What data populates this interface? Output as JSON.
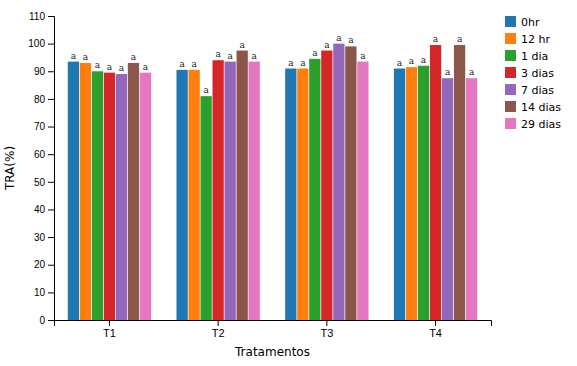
{
  "chart_data": {
    "type": "bar",
    "x_label": "Tratamentos",
    "y_label": "TRA(%)",
    "categories": [
      "T1",
      "T2",
      "T3",
      "T4"
    ],
    "series": [
      {
        "name": "0hr",
        "values": [
          93.5,
          90.5,
          91.0,
          91.0
        ],
        "annotations": [
          "a",
          "a",
          "a",
          "a"
        ]
      },
      {
        "name": "12 hr",
        "values": [
          93.0,
          90.5,
          91.0,
          91.5
        ],
        "annotations": [
          "a",
          "a",
          "a",
          "a"
        ]
      },
      {
        "name": "1 dia",
        "values": [
          90.0,
          81.0,
          94.5,
          92.0
        ],
        "annotations": [
          "a",
          "a",
          "a",
          "a"
        ]
      },
      {
        "name": "3 dias",
        "values": [
          89.5,
          94.0,
          97.5,
          99.5
        ],
        "annotations": [
          "a",
          "a",
          "a",
          "a"
        ]
      },
      {
        "name": "7 dias",
        "values": [
          89.0,
          93.5,
          100.0,
          87.5
        ],
        "annotations": [
          "a",
          "a",
          "a",
          "a"
        ]
      },
      {
        "name": "14 dias",
        "values": [
          93.0,
          97.5,
          99.0,
          99.5
        ],
        "annotations": [
          "a",
          "a",
          "a",
          "a"
        ]
      },
      {
        "name": "29 dias",
        "values": [
          89.5,
          93.5,
          93.5,
          87.5
        ],
        "annotations": [
          "a",
          "a",
          "a",
          "a"
        ]
      }
    ],
    "ylim": [
      0,
      110
    ],
    "yticks": [
      0,
      10,
      20,
      30,
      40,
      50,
      60,
      70,
      80,
      90,
      100,
      110
    ],
    "grid": false,
    "legend": "upper right"
  }
}
